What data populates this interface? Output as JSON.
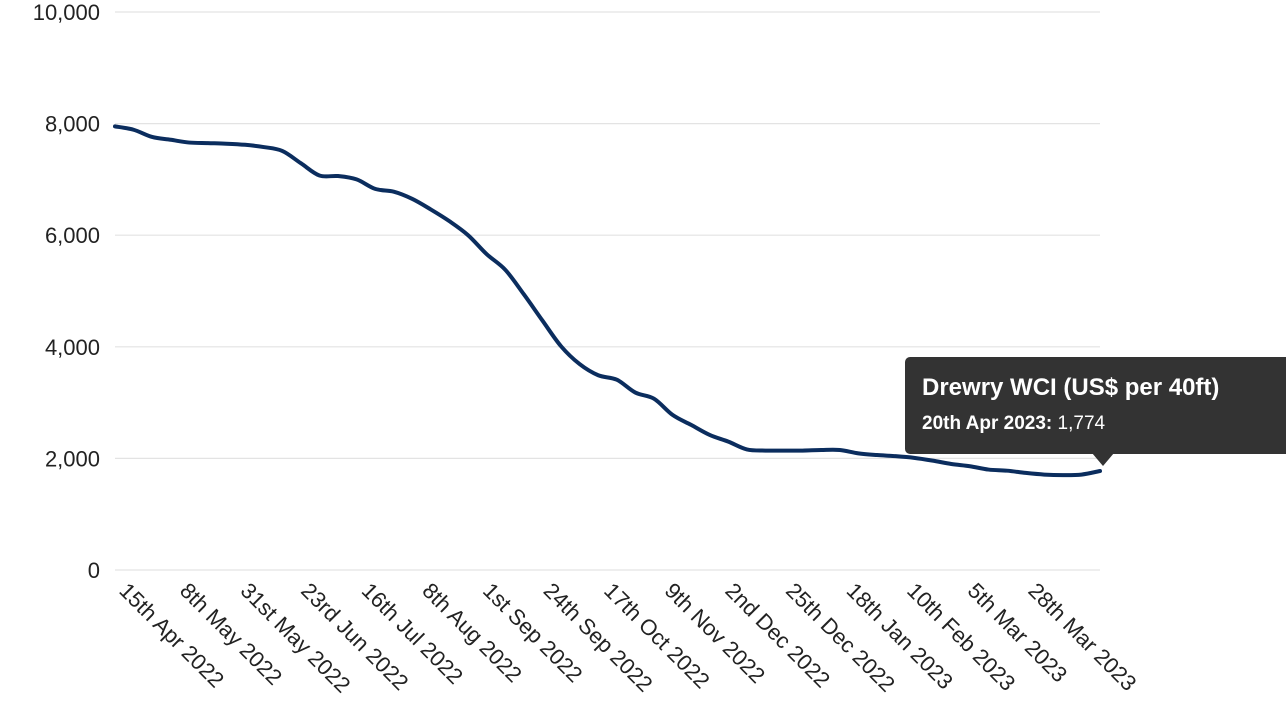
{
  "chart_data": {
    "type": "line",
    "title": "",
    "xlabel": "",
    "ylabel": "",
    "ylim": [
      0,
      10000
    ],
    "yticks": [
      "0",
      "2,000",
      "4,000",
      "6,000",
      "8,000",
      "10,000"
    ],
    "grid": true,
    "xticks": [
      "15th Apr 2022",
      "8th May 2022",
      "31st May 2022",
      "23rd Jun 2022",
      "16th Jul 2022",
      "8th Aug 2022",
      "1st Sep 2022",
      "24th Sep 2022",
      "17th Oct 2022",
      "9th Nov 2022",
      "2nd Dec 2022",
      "25th Dec 2022",
      "18th Jan 2023",
      "10th Feb 2023",
      "5th Mar 2023",
      "28th Mar 2023"
    ],
    "series": [
      {
        "name": "Drewry WCI (US$ per 40ft)",
        "color": "#0b2d5e",
        "points": [
          [
            "2022-04-14",
            7950
          ],
          [
            "2022-04-21",
            7890
          ],
          [
            "2022-04-28",
            7760
          ],
          [
            "2022-05-05",
            7710
          ],
          [
            "2022-05-12",
            7660
          ],
          [
            "2022-05-19",
            7650
          ],
          [
            "2022-05-26",
            7640
          ],
          [
            "2022-06-02",
            7620
          ],
          [
            "2022-06-09",
            7580
          ],
          [
            "2022-06-16",
            7510
          ],
          [
            "2022-06-23",
            7290
          ],
          [
            "2022-06-30",
            7070
          ],
          [
            "2022-07-07",
            7060
          ],
          [
            "2022-07-14",
            7000
          ],
          [
            "2022-07-21",
            6830
          ],
          [
            "2022-07-28",
            6780
          ],
          [
            "2022-08-04",
            6650
          ],
          [
            "2022-08-11",
            6460
          ],
          [
            "2022-08-18",
            6250
          ],
          [
            "2022-08-25",
            6000
          ],
          [
            "2022-09-01",
            5660
          ],
          [
            "2022-09-08",
            5380
          ],
          [
            "2022-09-15",
            4940
          ],
          [
            "2022-09-22",
            4470
          ],
          [
            "2022-09-29",
            4010
          ],
          [
            "2022-10-06",
            3690
          ],
          [
            "2022-10-13",
            3490
          ],
          [
            "2022-10-20",
            3410
          ],
          [
            "2022-10-27",
            3180
          ],
          [
            "2022-11-03",
            3070
          ],
          [
            "2022-11-10",
            2780
          ],
          [
            "2022-11-17",
            2600
          ],
          [
            "2022-11-24",
            2420
          ],
          [
            "2022-12-01",
            2300
          ],
          [
            "2022-12-08",
            2160
          ],
          [
            "2022-12-15",
            2140
          ],
          [
            "2022-12-22",
            2140
          ],
          [
            "2022-12-29",
            2140
          ],
          [
            "2023-01-05",
            2150
          ],
          [
            "2023-01-12",
            2150
          ],
          [
            "2023-01-19",
            2090
          ],
          [
            "2023-01-26",
            2060
          ],
          [
            "2023-02-02",
            2040
          ],
          [
            "2023-02-09",
            2010
          ],
          [
            "2023-02-16",
            1960
          ],
          [
            "2023-02-23",
            1900
          ],
          [
            "2023-03-02",
            1860
          ],
          [
            "2023-03-09",
            1800
          ],
          [
            "2023-03-16",
            1780
          ],
          [
            "2023-03-23",
            1740
          ],
          [
            "2023-03-30",
            1710
          ],
          [
            "2023-04-06",
            1700
          ],
          [
            "2023-04-13",
            1710
          ],
          [
            "2023-04-20",
            1774
          ]
        ]
      }
    ],
    "tooltip": {
      "title": "Drewry WCI (US$ per 40ft)",
      "date_label": "20th Apr 2023",
      "value": "1,774"
    }
  }
}
